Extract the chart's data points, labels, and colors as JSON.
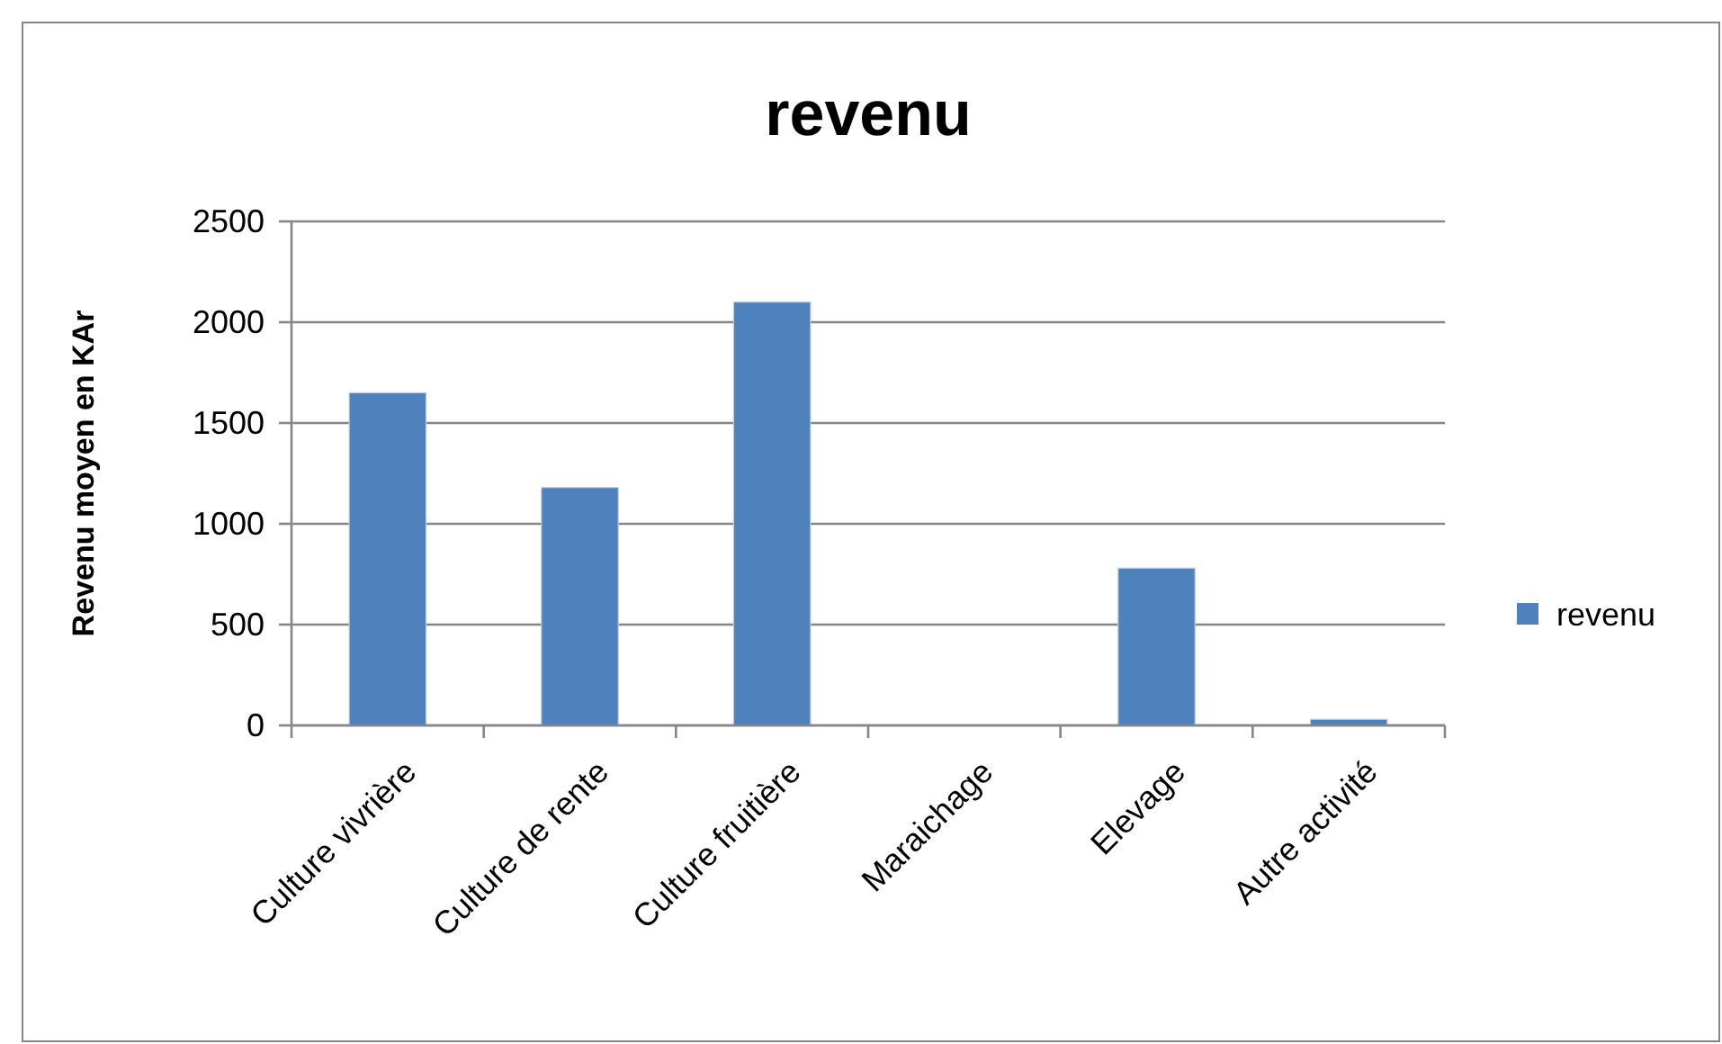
{
  "chart_data": {
    "type": "bar",
    "title": "revenu",
    "ylabel": "Revenu moyen en KAr",
    "categories": [
      "Culture vivrière",
      "Culture de rente",
      "Culture fruitière",
      "Maraichage",
      "Elevage",
      "Autre activité"
    ],
    "series": [
      {
        "name": "revenu",
        "color": "#4f81bd",
        "values": [
          1650,
          1180,
          2100,
          0,
          780,
          30
        ]
      }
    ],
    "ylim": [
      0,
      2500
    ],
    "yticks": [
      0,
      500,
      1000,
      1500,
      2000,
      2500
    ],
    "grid": "y",
    "legend": "right"
  }
}
